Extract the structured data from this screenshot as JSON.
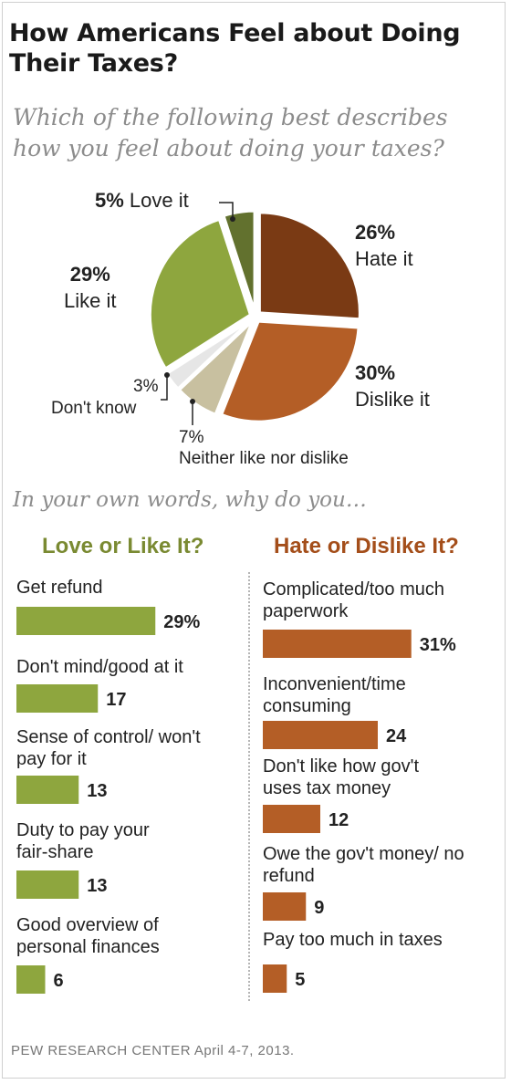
{
  "title": "How Americans Feel about Doing Their Taxes?",
  "question": "Which of the following best describes how you feel about doing your taxes?",
  "subtitle": "In your own words, why do you…",
  "source": "PEW RESEARCH CENTER April 4-7, 2013.",
  "colors": {
    "hate": "#7a3a14",
    "dislike": "#b45e26",
    "neither": "#c8c0a0",
    "dont_know": "#e6e6e6",
    "like": "#8ea63e",
    "love": "#62712e",
    "like_bar": "#8ea63e",
    "hate_bar": "#b45e26",
    "like_head": "#7a8a32",
    "hate_head": "#a44e1a"
  },
  "chart_data": [
    {
      "type": "pie",
      "slices": [
        {
          "key": "hate",
          "pct_label": "26%",
          "label": "Hate it",
          "value": 26
        },
        {
          "key": "dislike",
          "pct_label": "30%",
          "label": "Dislike it",
          "value": 30
        },
        {
          "key": "neither",
          "pct_label": "7%",
          "label": "Neither like nor dislike",
          "value": 7
        },
        {
          "key": "dont_know",
          "pct_label": "3%",
          "label": "Don't know",
          "value": 3
        },
        {
          "key": "like",
          "pct_label": "29%",
          "label": "Like it",
          "value": 29
        },
        {
          "key": "love",
          "pct_label": "5%",
          "label": "Love it",
          "value": 5
        }
      ]
    },
    {
      "type": "bar",
      "heading": "Love or Like It?",
      "unit_suffix": "%",
      "items": [
        {
          "label": "Get refund",
          "value": 29
        },
        {
          "label": "Don't mind/good at it",
          "value": 17
        },
        {
          "label": "Sense of control/ won't pay for it",
          "value": 13
        },
        {
          "label": "Duty to pay your fair-share",
          "value": 13
        },
        {
          "label": "Good overview of personal finances",
          "value": 6
        }
      ]
    },
    {
      "type": "bar",
      "heading": "Hate or Dislike It?",
      "unit_suffix": "%",
      "items": [
        {
          "label": "Complicated/too much paperwork",
          "value": 31
        },
        {
          "label": "Inconvenient/time consuming",
          "value": 24
        },
        {
          "label": "Don't like how gov't uses tax money",
          "value": 12
        },
        {
          "label": "Owe the gov't money/ no refund",
          "value": 9
        },
        {
          "label": "Pay too much in taxes",
          "value": 5
        }
      ]
    }
  ]
}
